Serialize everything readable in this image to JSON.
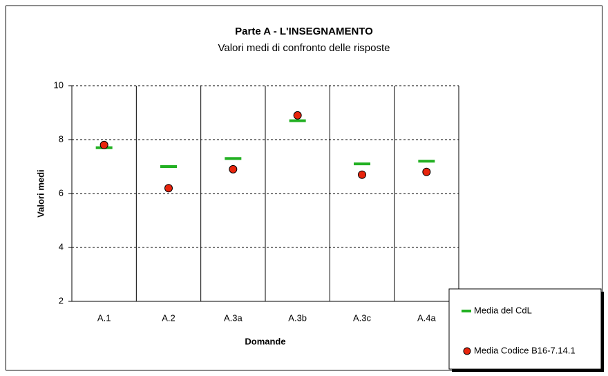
{
  "chart_data": {
    "type": "scatter",
    "title": "Parte A - L'INSEGNAMENTO",
    "subtitle": "Valori medi di confronto delle risposte",
    "x_label": "Domande",
    "y_label": "Valori medi",
    "categories": [
      "A.1",
      "A.2",
      "A.3a",
      "A.3b",
      "A.3c",
      "A.4a"
    ],
    "series": [
      {
        "name": "Media del CdL",
        "color": "#22b022",
        "marker": "dash",
        "values": [
          7.7,
          7.0,
          7.3,
          8.7,
          7.1,
          7.2
        ]
      },
      {
        "name": "Media Codice B16-7.14.1",
        "color": "#e8240c",
        "marker": "circle",
        "values": [
          7.8,
          6.2,
          6.9,
          8.9,
          6.7,
          6.8
        ]
      }
    ],
    "ylim": [
      2,
      10
    ],
    "yticks": [
      2,
      4,
      6,
      8,
      10
    ],
    "grid": true,
    "legend": "bottom-right"
  }
}
